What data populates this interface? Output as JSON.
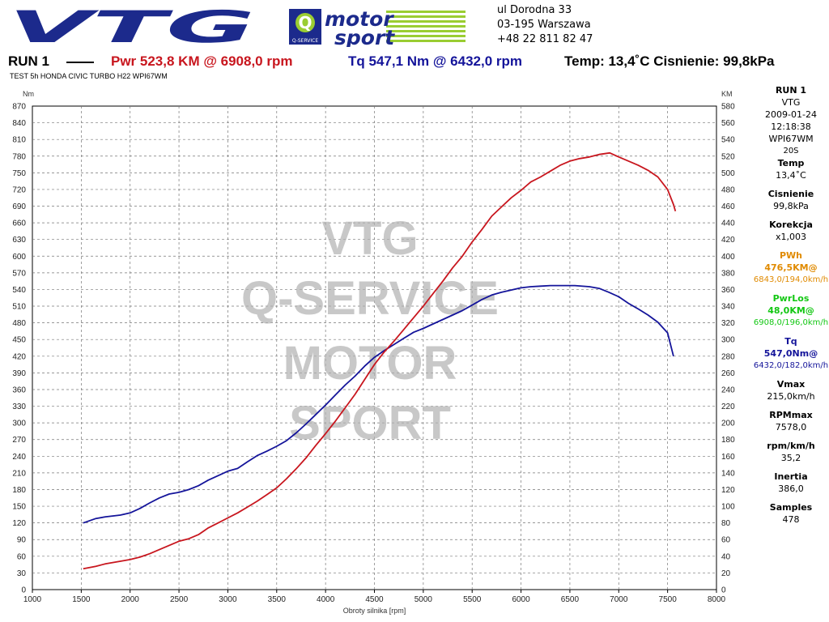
{
  "header": {
    "address_line1": "ul Dorodna 33",
    "address_line2": "03-195 Warszawa",
    "address_line3": "+48 22 811 82 47",
    "run": "RUN 1",
    "pwr": "Pwr  523,8 KM @ 6908,0 rpm",
    "tq": "Tq 547,1 Nm @ 6432,0 rpm",
    "conditions": "Temp: 13,4˚C Cisnienie: 99,8kPa",
    "subtitle": "TEST 5h HONDA CIVIC TURBO H22 WPI67WM"
  },
  "logos": {
    "vtg": "VTG",
    "qservice": "Q-SERVICE",
    "motor": "motor",
    "sport": "sport"
  },
  "watermark": [
    "VTG",
    "Q-SERVICE",
    "MOTOR",
    "SPORT"
  ],
  "sidebar": {
    "run": "RUN 1",
    "name": "VTG",
    "date": "2009-01-24",
    "time": "12:18:38",
    "plate": "WPI67WM",
    "code": "20S",
    "temp_label": "Temp",
    "temp_value": "13,4˚C",
    "press_label": "Cisnienie",
    "press_value": "99,8kPa",
    "corr_label": "Korekcja",
    "corr_value": "x1,003",
    "pwh_label": "PWh",
    "pwh_value": "476,5KM@",
    "pwh_detail": "6843,0/194,0km/h",
    "pwrlos_label": "PwrLos",
    "pwrlos_value": "48,0KM@",
    "pwrlos_detail": "6908,0/196,0km/h",
    "tq_label": "Tq",
    "tq_value": "547,0Nm@",
    "tq_detail": "6432,0/182,0km/h",
    "vmax_label": "Vmax",
    "vmax_value": "215,0km/h",
    "rpmmax_label": "RPMmax",
    "rpmmax_value": "7578,0",
    "ratio_label": "rpm/km/h",
    "ratio_value": "35,2",
    "inertia_label": "Inertia",
    "inertia_value": "386,0",
    "samples_label": "Samples",
    "samples_value": "478"
  },
  "colors": {
    "power": "#c8161e",
    "torque": "#14149a",
    "pwh": "#e08a00",
    "pwrlos": "#13c713",
    "watermark": "#b0b0b0",
    "logo_blue": "#1c2a8c",
    "logo_green": "#9acd32"
  },
  "chart_data": {
    "type": "line",
    "xlabel": "Obroty silnika [rpm]",
    "ylabel_left": "Nm",
    "ylabel_right": "KM",
    "xlim": [
      1000,
      8000
    ],
    "ylim_left": [
      0,
      870
    ],
    "ylim_right": [
      0,
      580
    ],
    "x_ticks": [
      1000,
      1500,
      2000,
      2500,
      3000,
      3500,
      4000,
      4500,
      5000,
      5500,
      6000,
      6500,
      7000,
      7500,
      8000
    ],
    "y_ticks_left": [
      0,
      30,
      60,
      90,
      120,
      150,
      180,
      210,
      240,
      270,
      300,
      330,
      360,
      390,
      420,
      450,
      480,
      510,
      540,
      570,
      600,
      630,
      660,
      690,
      720,
      750,
      780,
      810,
      840,
      870
    ],
    "y_ticks_right": [
      0,
      20,
      40,
      60,
      80,
      100,
      120,
      140,
      160,
      180,
      200,
      220,
      240,
      260,
      280,
      300,
      320,
      340,
      360,
      380,
      400,
      420,
      440,
      460,
      480,
      500,
      520,
      540,
      560,
      580
    ],
    "grid": true,
    "series": [
      {
        "name": "Tq",
        "axis": "left",
        "x": [
          1520,
          1650,
          1750,
          1900,
          2000,
          2100,
          2200,
          2300,
          2400,
          2500,
          2600,
          2700,
          2800,
          2900,
          3000,
          3100,
          3200,
          3300,
          3400,
          3500,
          3600,
          3700,
          3800,
          3900,
          4000,
          4100,
          4200,
          4300,
          4400,
          4500,
          4600,
          4700,
          4800,
          4900,
          5000,
          5100,
          5200,
          5300,
          5400,
          5500,
          5600,
          5700,
          5800,
          5900,
          6000,
          6100,
          6200,
          6300,
          6432,
          6550,
          6700,
          6800,
          6900,
          7000,
          7100,
          7200,
          7300,
          7400,
          7500,
          7560
        ],
        "y": [
          120,
          128,
          131,
          134,
          138,
          146,
          156,
          165,
          172,
          175,
          180,
          187,
          197,
          205,
          213,
          218,
          230,
          241,
          249,
          258,
          268,
          282,
          298,
          315,
          332,
          350,
          368,
          384,
          402,
          418,
          430,
          441,
          452,
          463,
          470,
          478,
          486,
          494,
          502,
          512,
          522,
          530,
          535,
          539,
          543,
          545,
          546,
          547,
          547.1,
          547,
          545,
          542,
          535,
          527,
          515,
          505,
          494,
          481,
          462,
          420
        ]
      },
      {
        "name": "Pwr",
        "axis": "right",
        "x": [
          1520,
          1650,
          1750,
          1900,
          2000,
          2100,
          2200,
          2300,
          2400,
          2500,
          2600,
          2700,
          2800,
          2900,
          3000,
          3100,
          3200,
          3300,
          3400,
          3500,
          3600,
          3700,
          3800,
          3900,
          4000,
          4100,
          4200,
          4300,
          4400,
          4500,
          4600,
          4700,
          4800,
          4900,
          5000,
          5100,
          5200,
          5300,
          5400,
          5500,
          5600,
          5700,
          5800,
          5900,
          6000,
          6100,
          6200,
          6300,
          6400,
          6500,
          6600,
          6700,
          6800,
          6908,
          7000,
          7100,
          7200,
          7300,
          7400,
          7500,
          7560,
          7580
        ],
        "y": [
          25,
          28,
          31,
          34,
          36,
          39,
          43,
          48,
          53,
          58,
          61,
          66,
          74,
          80,
          86,
          92,
          99,
          106,
          114,
          122,
          133,
          145,
          158,
          173,
          187,
          202,
          218,
          234,
          252,
          270,
          285,
          298,
          312,
          326,
          340,
          355,
          370,
          386,
          400,
          417,
          432,
          448,
          459,
          470,
          479,
          489,
          495,
          502,
          509,
          514,
          517,
          519,
          522,
          523.8,
          519,
          514,
          509,
          503,
          495,
          480,
          462,
          454
        ]
      }
    ]
  }
}
